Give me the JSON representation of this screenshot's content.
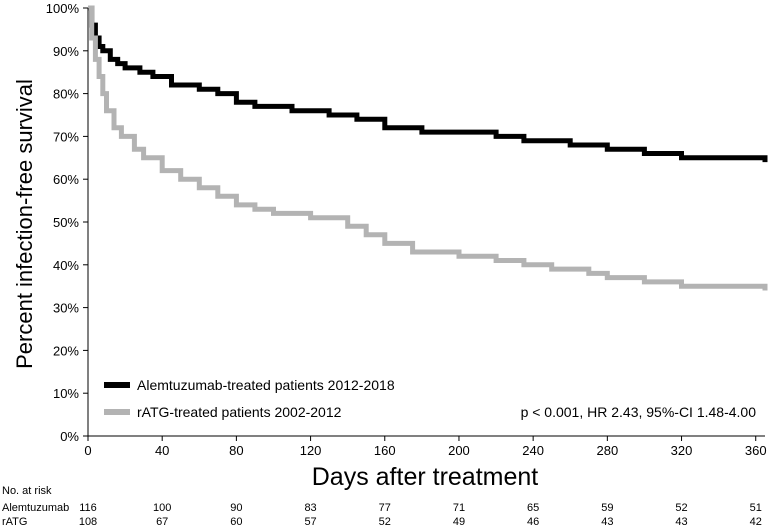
{
  "chart_data": {
    "type": "line",
    "ylabel": "Percent infection-free survival",
    "xlabel": "Days after treatment",
    "xlim": [
      0,
      365
    ],
    "ylim": [
      0,
      100
    ],
    "x_ticks": [
      0,
      40,
      80,
      120,
      160,
      200,
      240,
      280,
      320,
      360
    ],
    "y_ticks": [
      0,
      10,
      20,
      30,
      40,
      50,
      60,
      70,
      80,
      90,
      100
    ],
    "y_tick_labels": [
      "0%",
      "10%",
      "20%",
      "30%",
      "40%",
      "50%",
      "60%",
      "70%",
      "80%",
      "90%",
      "100%"
    ],
    "series": [
      {
        "name": "Alemtuzumab-treated patients 2012-2018",
        "color": "#000000",
        "x": [
          0,
          2,
          4,
          6,
          8,
          12,
          16,
          20,
          28,
          35,
          45,
          60,
          70,
          80,
          90,
          110,
          130,
          145,
          160,
          180,
          200,
          220,
          235,
          260,
          280,
          300,
          320,
          340,
          360,
          365
        ],
        "y": [
          100,
          96,
          93,
          91,
          90,
          88,
          87,
          86,
          85,
          84,
          82,
          81,
          80,
          78,
          77,
          76,
          75,
          74,
          72,
          71,
          71,
          70,
          69,
          68,
          67,
          66,
          65,
          65,
          65,
          64
        ]
      },
      {
        "name": "rATG-treated patients 2002-2012",
        "color": "#b3b3b3",
        "x": [
          0,
          2,
          4,
          6,
          8,
          10,
          14,
          18,
          25,
          30,
          40,
          50,
          60,
          70,
          80,
          90,
          100,
          120,
          140,
          150,
          160,
          175,
          200,
          220,
          235,
          250,
          270,
          280,
          300,
          320,
          340,
          360,
          365
        ],
        "y": [
          100,
          93,
          88,
          84,
          80,
          76,
          72,
          70,
          67,
          65,
          62,
          60,
          58,
          56,
          54,
          53,
          52,
          51,
          49,
          47,
          45,
          43,
          42,
          41,
          40,
          39,
          38,
          37,
          36,
          35,
          35,
          35,
          34
        ]
      }
    ],
    "legend": [
      "Alemtuzumab-treated patients 2012-2018",
      "rATG-treated patients 2002-2012"
    ],
    "legend_position": "bottom-left",
    "annotation": "p < 0.001, HR 2.43, 95%-CI 1.48-4.00"
  },
  "risk_table": {
    "title": "No. at risk",
    "rows": [
      {
        "label": "Alemtuzumab",
        "values": [
          "116",
          "100",
          "90",
          "83",
          "77",
          "71",
          "65",
          "59",
          "52",
          "51"
        ]
      },
      {
        "label": "rATG",
        "values": [
          "108",
          "67",
          "60",
          "57",
          "52",
          "49",
          "46",
          "43",
          "43",
          "42"
        ]
      }
    ]
  }
}
